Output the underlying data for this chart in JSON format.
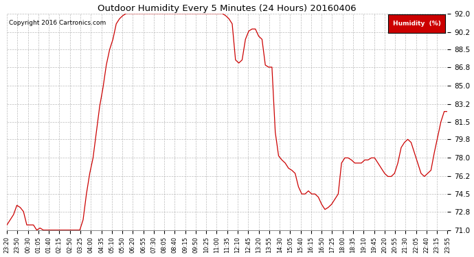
{
  "title": "Outdoor Humidity Every 5 Minutes (24 Hours) 20160406",
  "copyright": "Copyright 2016 Cartronics.com",
  "legend_label": "Humidity  (%)",
  "legend_bg": "#cc0000",
  "legend_text_color": "#ffffff",
  "line_color": "#cc0000",
  "bg_color": "#ffffff",
  "grid_color": "#aaaaaa",
  "ylim": [
    71.0,
    92.0
  ],
  "yticks": [
    71.0,
    72.8,
    74.5,
    76.2,
    78.0,
    79.8,
    81.5,
    83.2,
    85.0,
    86.8,
    88.5,
    90.2,
    92.0
  ],
  "x_labels": [
    "23:20",
    "23:50",
    "00:30",
    "01:05",
    "01:40",
    "02:15",
    "02:50",
    "03:25",
    "04:00",
    "04:35",
    "05:10",
    "05:50",
    "06:20",
    "06:55",
    "07:30",
    "08:05",
    "08:40",
    "09:15",
    "09:50",
    "10:25",
    "11:00",
    "11:35",
    "12:10",
    "12:45",
    "13:20",
    "13:55",
    "14:30",
    "15:05",
    "15:40",
    "16:15",
    "16:50",
    "17:25",
    "18:00",
    "18:35",
    "19:10",
    "19:45",
    "20:20",
    "20:55",
    "21:30",
    "22:05",
    "22:40",
    "23:15",
    "23:55"
  ],
  "keypoints_x": [
    0,
    1,
    2,
    3,
    4,
    5,
    6,
    7,
    8,
    9,
    10,
    11,
    12,
    13,
    14,
    15,
    16,
    17,
    18,
    19,
    20,
    21,
    22,
    23,
    24,
    25,
    26,
    27,
    28,
    29,
    30,
    31,
    32,
    33,
    34,
    35,
    36,
    37,
    38,
    39,
    40,
    41,
    42,
    43,
    44,
    45,
    46,
    47,
    48,
    49,
    50,
    51,
    52,
    53,
    54,
    55,
    56,
    57,
    58,
    59,
    60,
    61,
    62,
    63,
    64,
    65,
    66,
    67,
    68,
    69,
    70,
    71,
    72,
    73,
    74,
    75,
    76,
    77,
    78,
    79,
    80,
    81,
    82,
    83,
    84,
    85,
    86,
    87,
    88,
    89,
    90,
    91,
    92,
    93,
    94,
    95,
    96,
    97,
    98,
    99,
    100,
    101,
    102,
    103,
    104,
    105,
    106,
    107,
    108,
    109,
    110,
    111,
    112,
    113,
    114,
    115,
    116,
    117,
    118,
    119,
    120,
    121,
    122,
    123,
    124,
    125,
    126,
    127,
    128,
    129,
    130,
    131,
    132,
    133
  ],
  "keypoints_y": [
    71.5,
    72.0,
    72.5,
    73.4,
    73.2,
    72.8,
    71.5,
    71.5,
    71.5,
    71.0,
    71.2,
    71.0,
    71.0,
    71.0,
    71.0,
    71.0,
    71.0,
    71.0,
    71.0,
    71.0,
    71.0,
    71.0,
    71.0,
    72.0,
    74.5,
    76.5,
    78.0,
    80.5,
    83.0,
    84.8,
    87.0,
    88.5,
    89.5,
    91.0,
    91.5,
    91.8,
    92.0,
    92.0,
    92.0,
    92.0,
    92.0,
    92.0,
    92.0,
    92.0,
    92.0,
    92.0,
    92.0,
    92.0,
    92.0,
    92.0,
    92.0,
    92.0,
    92.0,
    92.0,
    92.0,
    92.0,
    92.0,
    92.0,
    92.0,
    92.0,
    92.0,
    92.0,
    92.0,
    92.0,
    92.0,
    92.0,
    91.8,
    91.5,
    91.0,
    87.5,
    87.2,
    87.5,
    89.5,
    90.3,
    90.5,
    90.5,
    89.8,
    89.5,
    87.0,
    86.8,
    86.8,
    80.5,
    78.2,
    77.8,
    77.5,
    77.0,
    76.8,
    76.5,
    75.2,
    74.5,
    74.5,
    74.8,
    74.5,
    74.5,
    74.2,
    73.5,
    73.0,
    73.2,
    73.5,
    74.0,
    74.5,
    77.5,
    78.0,
    78.0,
    77.8,
    77.5,
    77.5,
    77.5,
    77.8,
    77.8,
    78.0,
    78.0,
    77.5,
    77.0,
    76.5,
    76.2,
    76.2,
    76.5,
    77.5,
    79.0,
    79.5,
    79.8,
    79.5,
    78.5,
    77.5,
    76.5,
    76.2,
    76.5,
    76.8,
    78.5,
    80.0,
    81.5,
    82.5,
    82.5
  ]
}
